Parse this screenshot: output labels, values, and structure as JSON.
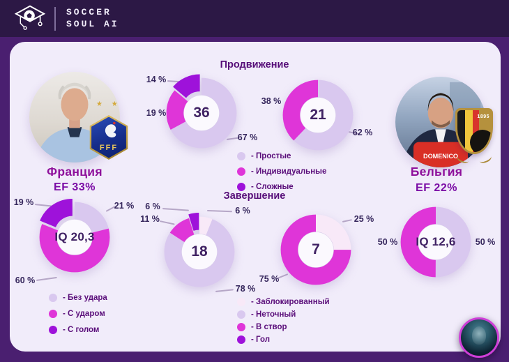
{
  "header": {
    "brand_line1": "SOCCER",
    "brand_line2": "SOUL AI"
  },
  "colors": {
    "lavender": "#d9c8ef",
    "magenta": "#df35d8",
    "purple": "#9e12da",
    "pale": "#f8e9f8",
    "hole": "#fbf9fe",
    "header_bg": "#2c1845",
    "frame": "#4a1f70",
    "panel_bg": "#f1ecfa"
  },
  "teams": {
    "france": {
      "name": "Франция",
      "ef": "EF 33%",
      "stars": "★ ★",
      "badge_text": "FFF",
      "legend": [
        {
          "color": "lavender",
          "label": "- Без удара"
        },
        {
          "color": "magenta",
          "label": "- С ударом"
        },
        {
          "color": "purple",
          "label": "- С голом"
        }
      ]
    },
    "belgium": {
      "name": "Бельгия",
      "ef": "EF 22%",
      "badge_year": "1895",
      "jersey_text": "DOMENICO"
    }
  },
  "sections": {
    "promotion": {
      "title": "Продвижение",
      "legend": [
        {
          "color": "lavender",
          "label": "- Простые"
        },
        {
          "color": "magenta",
          "label": "- Индивидуальные"
        },
        {
          "color": "purple",
          "label": "- Сложные"
        }
      ]
    },
    "finishing": {
      "title": "Завершение",
      "legend": [
        {
          "color": "pale",
          "label": "- Заблокированный"
        },
        {
          "color": "lavender",
          "label": "- Неточный"
        },
        {
          "color": "magenta",
          "label": "- В створ"
        },
        {
          "color": "purple",
          "label": "- Гол"
        }
      ]
    }
  },
  "chart_data": [
    {
      "id": "france_promotion",
      "type": "pie",
      "title": "Продвижение",
      "center_label": "36",
      "slices": [
        {
          "label": "Простые",
          "value": 67,
          "display": "67 %",
          "color": "lavender"
        },
        {
          "label": "Индивидуальные",
          "value": 19,
          "display": "19 %",
          "color": "magenta"
        },
        {
          "label": "Сложные",
          "value": 14,
          "display": "14 %",
          "color": "purple",
          "exploded": true
        }
      ]
    },
    {
      "id": "belgium_promotion",
      "type": "pie",
      "title": "Продвижение",
      "center_label": "21",
      "slices": [
        {
          "label": "Простые",
          "value": 62,
          "display": "62 %",
          "color": "lavender"
        },
        {
          "label": "Индивидуальные",
          "value": 38,
          "display": "38 %",
          "color": "magenta"
        }
      ]
    },
    {
      "id": "france_iq",
      "type": "pie",
      "title": "Завершение",
      "center_label": "IQ 20,3",
      "slices": [
        {
          "label": "Без удара",
          "value": 21,
          "display": "21 %",
          "color": "lavender"
        },
        {
          "label": "С ударом",
          "value": 60,
          "display": "60 %",
          "color": "magenta"
        },
        {
          "label": "С голом",
          "value": 19,
          "display": "19 %",
          "color": "purple",
          "exploded": true
        }
      ]
    },
    {
      "id": "france_finishing",
      "type": "pie",
      "title": "Завершение",
      "center_label": "18",
      "slices": [
        {
          "label": "Заблокированный",
          "value": 6,
          "display": "6 %",
          "color": "pale"
        },
        {
          "label": "Неточный",
          "value": 78,
          "display": "78 %",
          "color": "lavender"
        },
        {
          "label": "В створ",
          "value": 11,
          "display": "11 %",
          "color": "magenta"
        },
        {
          "label": "Гол",
          "value": 6,
          "display": "6 %",
          "color": "purple",
          "exploded": true
        }
      ]
    },
    {
      "id": "belgium_finishing",
      "type": "pie",
      "title": "Завершение",
      "center_label": "7",
      "slices": [
        {
          "label": "Заблокированный",
          "value": 25,
          "display": "25 %",
          "color": "pale"
        },
        {
          "label": "В створ",
          "value": 75,
          "display": "75 %",
          "color": "magenta"
        }
      ]
    },
    {
      "id": "belgium_iq",
      "type": "pie",
      "title": "Завершение",
      "center_label": "IQ 12,6",
      "slices": [
        {
          "label": "",
          "value": 50,
          "display": "50 %",
          "color": "lavender"
        },
        {
          "label": "",
          "value": 50,
          "display": "50 %",
          "color": "magenta"
        }
      ]
    }
  ]
}
